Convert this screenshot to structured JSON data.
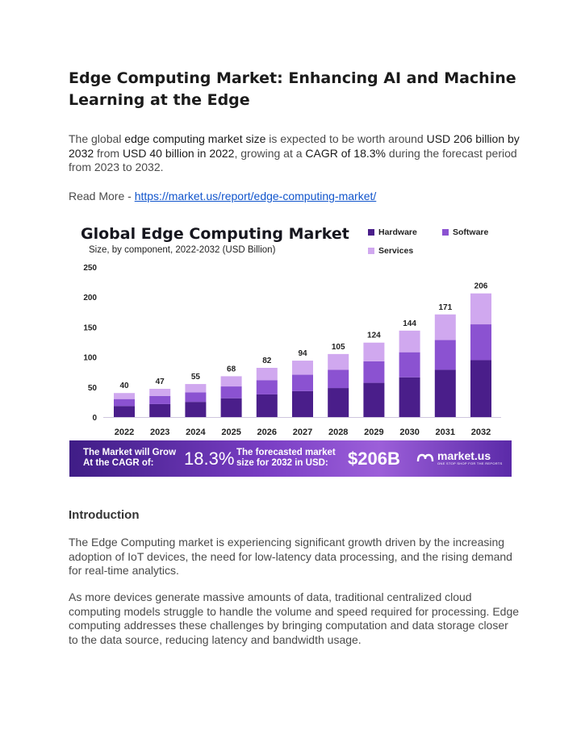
{
  "article": {
    "title": "Edge Computing Market: Enhancing AI and Machine Learning at the Edge",
    "intro": {
      "t1": "The global ",
      "h1": "edge computing market size",
      "t2": " is expected to be worth around ",
      "h2": "USD 206 billion by 2032",
      "t3": " from ",
      "h3": "USD 40 billion in 2022",
      "t4": ", growing at a ",
      "h4": "CAGR of 18.3%",
      "t5": " during the forecast period from 2023 to 2032."
    },
    "read_more_label": "Read More - ",
    "read_more_url": "https://market.us/report/edge-computing-market/",
    "section_heading": "Introduction",
    "paragraph_1": "The Edge Computing market is experiencing significant growth driven by the increasing adoption of IoT devices, the need for low-latency data processing, and the rising demand for real-time analytics.",
    "paragraph_2": " As more devices generate massive amounts of data, traditional centralized cloud computing models struggle to handle the volume and speed required for processing. Edge computing addresses these challenges by bringing computation and data storage closer to the data source, reducing latency and bandwidth usage."
  },
  "chart_data": {
    "type": "bar",
    "stacked": true,
    "title": "Global Edge Computing Market",
    "subtitle": "Size, by component, 2022-2032 (USD Billion)",
    "categories": [
      "2022",
      "2023",
      "2024",
      "2025",
      "2026",
      "2027",
      "2028",
      "2029",
      "2030",
      "2031",
      "2032"
    ],
    "series": [
      {
        "name": "Hardware",
        "color": "#4a1e8a",
        "values": [
          18.4,
          21.6,
          25.3,
          31.3,
          37.7,
          43.2,
          48.3,
          57.0,
          66.2,
          78.7,
          94.8
        ]
      },
      {
        "name": "Software",
        "color": "#8b52d1",
        "values": [
          11.6,
          13.6,
          15.9,
          19.7,
          23.8,
          27.3,
          30.4,
          35.9,
          41.8,
          49.6,
          59.7
        ]
      },
      {
        "name": "Services",
        "color": "#d0a8ef",
        "values": [
          10.0,
          11.8,
          13.8,
          17.0,
          20.5,
          23.5,
          26.3,
          31.1,
          36.0,
          42.7,
          51.5
        ]
      }
    ],
    "totals": [
      40,
      47,
      55,
      68,
      82,
      94,
      105,
      124,
      144,
      171,
      206
    ],
    "yticks": [
      0,
      50,
      100,
      150,
      200,
      250
    ],
    "ylim": [
      0,
      250
    ],
    "legend_position": "top-right",
    "grid": false
  },
  "banner": {
    "cagr_label": "The Market will Grow\nAt the CAGR of:",
    "cagr_value": "18.3%",
    "forecast_label": "The forecasted market\nsize for 2032 in USD:",
    "forecast_value": "$206B",
    "brand_name": "market.us",
    "brand_tagline": "ONE STOP SHOP FOR THE REPORTS",
    "brand_icon": "market-us-logo-icon"
  }
}
